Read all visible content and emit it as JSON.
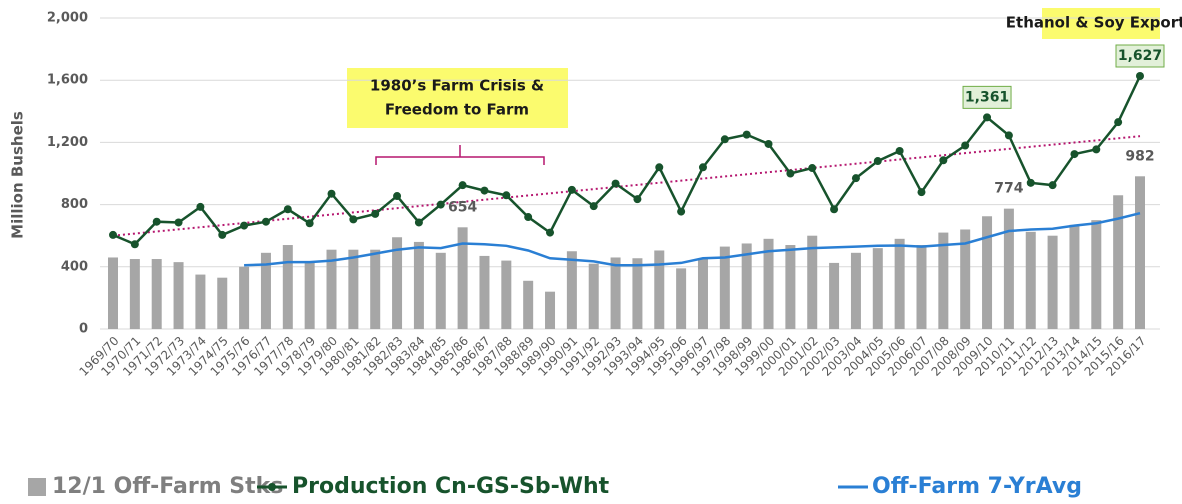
{
  "chart_data": {
    "type": "combo",
    "ylabel": "Million Bushels",
    "categories": [
      "1969/70",
      "1970/71",
      "1971/72",
      "1972/73",
      "1973/74",
      "1974/75",
      "1975/76",
      "1976/77",
      "1977/78",
      "1978/79",
      "1979/80",
      "1980/81",
      "1981/82",
      "1982/83",
      "1983/84",
      "1984/85",
      "1985/86",
      "1986/87",
      "1987/88",
      "1988/89",
      "1989/90",
      "1990/91",
      "1991/92",
      "1992/93",
      "1993/94",
      "1994/95",
      "1995/96",
      "1996/97",
      "1997/98",
      "1998/99",
      "1999/00",
      "2000/01",
      "2001/02",
      "2002/03",
      "2003/04",
      "2004/05",
      "2005/06",
      "2006/07",
      "2007/08",
      "2008/09",
      "2009/10",
      "2010/11",
      "2011/12",
      "2012/13",
      "2013/14",
      "2014/15",
      "2015/16",
      "2016/17"
    ],
    "series": [
      {
        "name": "12/1 Off-Farm Stks",
        "type": "bar",
        "color": "#a6a6a6",
        "values": [
          460,
          450,
          450,
          430,
          350,
          330,
          400,
          490,
          540,
          430,
          510,
          510,
          510,
          590,
          560,
          490,
          654,
          470,
          440,
          310,
          240,
          500,
          420,
          460,
          455,
          505,
          390,
          450,
          530,
          550,
          580,
          540,
          600,
          425,
          490,
          520,
          580,
          540,
          620,
          640,
          725,
          774,
          625,
          600,
          670,
          700,
          860,
          982
        ],
        "value_labels": [
          null,
          null,
          null,
          null,
          null,
          null,
          null,
          null,
          null,
          null,
          null,
          null,
          null,
          null,
          null,
          null,
          "654",
          null,
          null,
          null,
          null,
          null,
          null,
          null,
          null,
          null,
          null,
          null,
          null,
          null,
          null,
          null,
          null,
          null,
          null,
          null,
          null,
          null,
          null,
          null,
          null,
          "774",
          null,
          null,
          null,
          null,
          null,
          "982"
        ]
      },
      {
        "name": "Production Cn-GS-Sb-Wht",
        "type": "line-marker",
        "color": "#17532c",
        "values": [
          605,
          545,
          690,
          685,
          785,
          605,
          665,
          690,
          770,
          680,
          870,
          705,
          740,
          855,
          685,
          800,
          925,
          890,
          860,
          720,
          620,
          895,
          790,
          935,
          835,
          1040,
          755,
          1040,
          1220,
          1250,
          1190,
          1000,
          1035,
          770,
          970,
          1080,
          1145,
          880,
          1085,
          1180,
          1361,
          1245,
          940,
          925,
          1125,
          1155,
          1330,
          1627
        ],
        "value_labels": [
          null,
          null,
          null,
          null,
          null,
          null,
          null,
          null,
          null,
          null,
          null,
          null,
          null,
          null,
          null,
          null,
          null,
          null,
          null,
          null,
          null,
          null,
          null,
          null,
          null,
          null,
          null,
          null,
          null,
          null,
          null,
          null,
          null,
          null,
          null,
          null,
          null,
          null,
          null,
          null,
          "1,361",
          null,
          null,
          null,
          null,
          null,
          null,
          "1,627"
        ]
      },
      {
        "name": "Off-Farm 7-YrAvg",
        "type": "line",
        "color": "#2a7fd4",
        "values": [
          null,
          null,
          null,
          null,
          null,
          null,
          410,
          415,
          430,
          430,
          440,
          460,
          485,
          510,
          525,
          520,
          550,
          545,
          535,
          505,
          455,
          445,
          435,
          410,
          410,
          415,
          425,
          455,
          460,
          480,
          500,
          510,
          520,
          525,
          530,
          535,
          537,
          530,
          540,
          550,
          590,
          630,
          640,
          645,
          665,
          680,
          710,
          745
        ]
      }
    ],
    "trendline": {
      "color": "#b5176f",
      "values": [
        600,
        1240
      ]
    },
    "annotations": [
      {
        "lines": [
          "1980’s Farm Crisis &",
          "Freedom to Farm"
        ]
      },
      {
        "lines": [
          "Ethanol & Soy Exports"
        ]
      }
    ],
    "ylim": [
      0,
      2000
    ],
    "yticks": [
      0,
      400,
      800,
      {
        "value": 1200,
        "label": "1,200"
      },
      {
        "value": 1600,
        "label": "1,600"
      },
      {
        "value": 2000,
        "label": "2,000"
      }
    ],
    "grid": true
  }
}
